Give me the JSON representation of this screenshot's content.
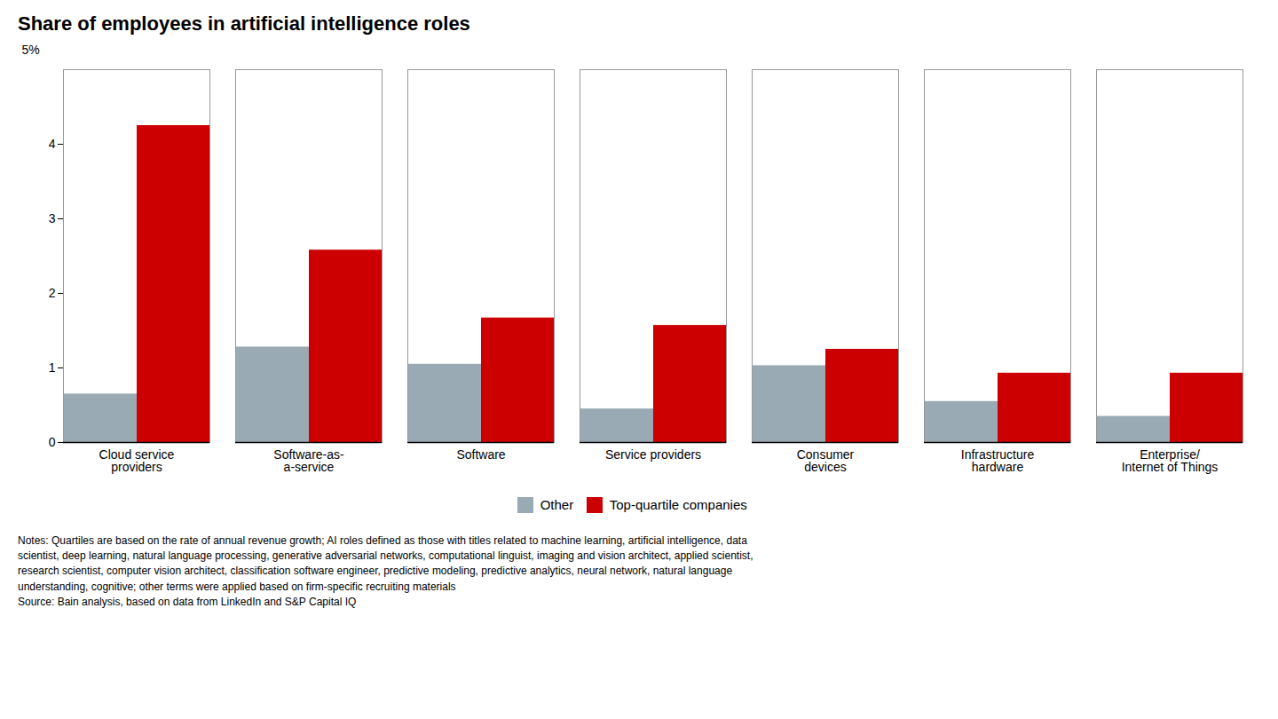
{
  "chart_data": {
    "type": "bar",
    "title": "Share of employees in artificial intelligence roles",
    "ylabel": "5%",
    "categories": [
      "Cloud service\nproviders",
      "Software-as-\na-service",
      "Software",
      "Service providers",
      "Consumer\ndevices",
      "Infrastructure\nhardware",
      "Enterprise/\nInternet of Things"
    ],
    "series": [
      {
        "name": "Other",
        "color": "#9aaab4",
        "values": [
          0.65,
          1.28,
          1.05,
          0.45,
          1.03,
          0.55,
          0.35
        ]
      },
      {
        "name": "Top-quartile companies",
        "color": "#cc0000",
        "values": [
          4.25,
          2.58,
          1.67,
          1.57,
          1.25,
          0.93,
          0.93
        ]
      }
    ],
    "ylim": [
      0,
      5
    ],
    "yticks": [
      0,
      1,
      2,
      3,
      4
    ],
    "grid": false,
    "legend": "bottom",
    "notes": [
      "Notes: Quartiles are based on the rate of annual revenue growth; AI roles defined as those with titles related to machine learning, artificial intelligence, data",
      "scientist, deep learning, natural language processing, generative adversarial networks, computational linguist, imaging and vision architect, applied scientist,",
      "research scientist, computer vision architect, classification software engineer, predictive modeling, predictive analytics, neural network, natural language",
      "understanding, cognitive; other terms were applied based on firm-specific recruiting materials",
      "Source: Bain analysis, based on data from LinkedIn and S&P Capital IQ"
    ]
  }
}
